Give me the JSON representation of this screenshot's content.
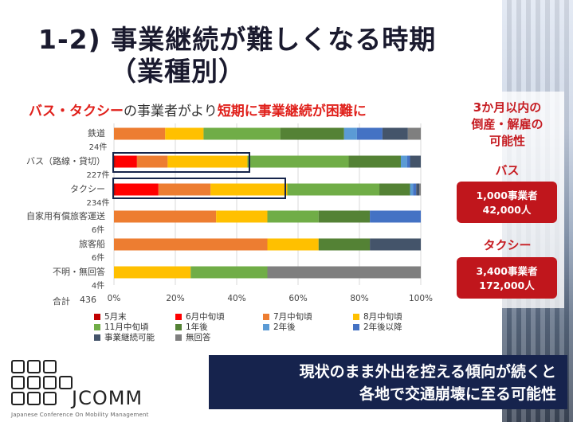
{
  "title": {
    "line1": "1-2) 事業継続が難しくなる時期",
    "line2": "（業種別）"
  },
  "subtitle": {
    "part1": "バス・タクシー",
    "part2": "の事業者がより",
    "part3": "短期に事業継続が困難に"
  },
  "total": {
    "label": "合計",
    "value": "436"
  },
  "chart_data": {
    "type": "bar",
    "orientation": "horizontal",
    "stacked": true,
    "percent": true,
    "xlim": [
      0,
      100
    ],
    "xticks": [
      "0%",
      "20%",
      "40%",
      "60%",
      "80%",
      "100%"
    ],
    "grid": true,
    "legend_position": "bottom",
    "categories": [
      "鉄道",
      "バス（路線・貸切）",
      "タクシー",
      "自家用有償旅客運送",
      "旅客船",
      "不明・無回答"
    ],
    "counts": [
      "24件",
      "227件",
      "234件",
      "6件",
      "6件",
      "4件"
    ],
    "series": [
      {
        "name": "5月末",
        "color": "#c00000",
        "values": [
          0,
          0.5,
          0.5,
          0,
          0,
          0
        ]
      },
      {
        "name": "6月中旬頃",
        "color": "#ff0000",
        "values": [
          0,
          7,
          14,
          0,
          0,
          0
        ]
      },
      {
        "name": "7月中旬頃",
        "color": "#ed7d31",
        "values": [
          16.7,
          10,
          17,
          33.3,
          50,
          0
        ]
      },
      {
        "name": "8月中旬頃",
        "color": "#ffc000",
        "values": [
          12.5,
          26,
          25,
          16.7,
          16.7,
          25
        ]
      },
      {
        "name": "11月中旬頃",
        "color": "#70ad47",
        "values": [
          25,
          33,
          30,
          16.7,
          0,
          25
        ]
      },
      {
        "name": "1年後",
        "color": "#548235",
        "values": [
          20.8,
          17,
          10,
          16.7,
          16.7,
          0
        ]
      },
      {
        "name": "2年後",
        "color": "#5b9bd5",
        "values": [
          4.2,
          2,
          1,
          0,
          0,
          0
        ]
      },
      {
        "name": "2年後以降",
        "color": "#4472c4",
        "values": [
          8.3,
          1,
          1,
          16.6,
          0,
          0
        ]
      },
      {
        "name": "事業継続可能",
        "color": "#44546a",
        "values": [
          8.3,
          3.5,
          1,
          0,
          16.6,
          0
        ]
      },
      {
        "name": "無回答",
        "color": "#7f7f7f",
        "values": [
          4.2,
          0,
          0.5,
          0,
          0,
          50
        ]
      }
    ]
  },
  "risk_panel": {
    "heading_lines": [
      "3か月以内の",
      "倒産・解雇の",
      "可能性"
    ],
    "bus": {
      "label": "バス",
      "line1": "1,000事業者",
      "line2": "42,000人"
    },
    "taxi": {
      "label": "タクシー",
      "line1": "3,400事業者",
      "line2": "172,000人"
    }
  },
  "banner": {
    "line1": "現状のまま外出を控える傾向が続くと",
    "line2": "各地で交通崩壊に至る可能性"
  },
  "logo": {
    "name": "JCOMM",
    "subtitle": "Japanese Conference On Mobility Management"
  }
}
